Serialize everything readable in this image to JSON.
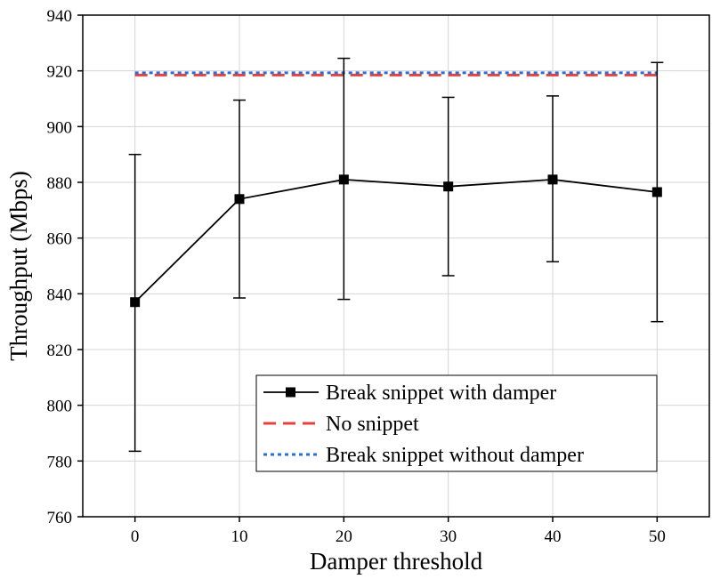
{
  "chart_data": {
    "type": "line",
    "title": "",
    "xlabel": "Damper threshold",
    "ylabel": "Throughput (Mbps)",
    "x": [
      0,
      10,
      20,
      30,
      40,
      50
    ],
    "x_ticks": [
      "0",
      "10",
      "20",
      "30",
      "40",
      "50"
    ],
    "xlim": [
      -5,
      55
    ],
    "y_ticks": [
      "760",
      "780",
      "800",
      "820",
      "840",
      "860",
      "880",
      "900",
      "920",
      "940"
    ],
    "ylim": [
      760,
      940
    ],
    "grid": true,
    "legend_position": "lower-right",
    "series": [
      {
        "name": "Break snippet with damper",
        "style": "solid-line-square-markers",
        "color": "#000000",
        "values": [
          837,
          874,
          881,
          878.5,
          881,
          876.5
        ],
        "error_low": [
          783.5,
          838.5,
          838,
          846.5,
          851.5,
          830
        ],
        "error_high": [
          890,
          909.5,
          924.5,
          910.5,
          911,
          923
        ]
      },
      {
        "name": "No snippet",
        "style": "dashed",
        "color": "#e8413c",
        "values": [
          918.5,
          918.5,
          918.5,
          918.5,
          918.5,
          918.5
        ]
      },
      {
        "name": "Break snippet without damper",
        "style": "dotted",
        "color": "#2a6fd6",
        "values": [
          919.3,
          919.3,
          919.3,
          919.3,
          919.3,
          919.3
        ]
      }
    ]
  }
}
